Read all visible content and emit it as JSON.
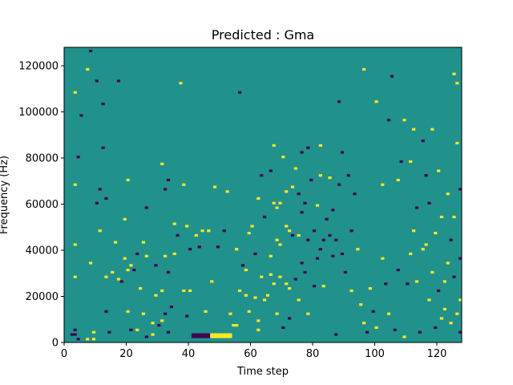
{
  "chart_data": {
    "type": "heatmap",
    "title": "Predicted : Gma",
    "xlabel": "Time step",
    "ylabel": "Frequency (Hz)",
    "xlim": [
      0,
      128
    ],
    "ylim": [
      0,
      128000
    ],
    "x_ticks": [
      0,
      20,
      40,
      60,
      80,
      100,
      120
    ],
    "y_ticks": [
      0,
      20000,
      40000,
      60000,
      80000,
      100000,
      120000
    ],
    "x_tick_labels": [
      "0",
      "20",
      "40",
      "60",
      "80",
      "100",
      "120"
    ],
    "y_tick_labels": [
      "0",
      "20000",
      "40000",
      "60000",
      "80000",
      "100000",
      "120000"
    ],
    "grid": false,
    "colormap": "viridis",
    "value_levels": [
      -1,
      0,
      1
    ],
    "colors": {
      "-1": "#440154",
      "0": "#21918c",
      "1": "#fde725"
    },
    "background_value": 0,
    "grid_shape": {
      "time_steps": 128,
      "frequency_bins": 128,
      "bin_hz": 1000
    },
    "note_cells": [
      [
        2,
        3,
        -1
      ],
      [
        3,
        3,
        -1
      ],
      [
        3,
        5,
        -1
      ],
      [
        4,
        1,
        -1
      ],
      [
        3,
        28,
        1
      ],
      [
        3,
        42,
        1
      ],
      [
        3,
        68,
        1
      ],
      [
        4,
        80,
        -1
      ],
      [
        5,
        98,
        -1
      ],
      [
        3,
        108,
        1
      ],
      [
        7,
        1,
        1
      ],
      [
        9,
        4,
        1
      ],
      [
        8,
        34,
        1
      ],
      [
        7,
        118,
        1
      ],
      [
        8,
        126,
        -1
      ],
      [
        9,
        1,
        1
      ],
      [
        10,
        60,
        -1
      ],
      [
        11,
        66,
        -1
      ],
      [
        10,
        113,
        -1
      ],
      [
        11,
        48,
        1
      ],
      [
        12,
        84,
        -1
      ],
      [
        13,
        13,
        -1
      ],
      [
        14,
        4,
        -1
      ],
      [
        13,
        28,
        1
      ],
      [
        12,
        103,
        -1
      ],
      [
        15,
        30,
        1
      ],
      [
        13,
        62,
        -1
      ],
      [
        16,
        43,
        1
      ],
      [
        17,
        27,
        1
      ],
      [
        17,
        113,
        -1
      ],
      [
        19,
        53,
        1
      ],
      [
        18,
        26,
        -1
      ],
      [
        19,
        36,
        1
      ],
      [
        20,
        70,
        1
      ],
      [
        20,
        31,
        1
      ],
      [
        20,
        13,
        1
      ],
      [
        21,
        5,
        -1
      ],
      [
        21,
        33,
        1
      ],
      [
        22,
        31,
        -1
      ],
      [
        23,
        5,
        1
      ],
      [
        23,
        38,
        -1
      ],
      [
        24,
        23,
        1
      ],
      [
        25,
        43,
        1
      ],
      [
        25,
        12,
        1
      ],
      [
        26,
        2,
        -1
      ],
      [
        26,
        37,
        1
      ],
      [
        26,
        58,
        -1
      ],
      [
        28,
        3,
        1
      ],
      [
        28,
        8,
        1
      ],
      [
        29,
        20,
        1
      ],
      [
        29,
        33,
        -1
      ],
      [
        30,
        7,
        -1
      ],
      [
        31,
        9,
        1
      ],
      [
        31,
        22,
        1
      ],
      [
        31,
        77,
        1
      ],
      [
        32,
        12,
        -1
      ],
      [
        32,
        37,
        1
      ],
      [
        32,
        66,
        -1
      ],
      [
        33,
        4,
        -1
      ],
      [
        33,
        30,
        -1
      ],
      [
        33,
        70,
        -1
      ],
      [
        34,
        15,
        -1
      ],
      [
        35,
        38,
        1
      ],
      [
        35,
        51,
        1
      ],
      [
        36,
        46,
        -1
      ],
      [
        37,
        112,
        1
      ],
      [
        38,
        22,
        1
      ],
      [
        38,
        68,
        1
      ],
      [
        39,
        11,
        -1
      ],
      [
        39,
        50,
        1
      ],
      [
        40,
        22,
        1
      ],
      [
        40,
        40,
        -1
      ],
      [
        41,
        2,
        -1
      ],
      [
        41,
        3,
        -1
      ],
      [
        42,
        2,
        -1
      ],
      [
        42,
        3,
        -1
      ],
      [
        42,
        46,
        1
      ],
      [
        43,
        2,
        -1
      ],
      [
        43,
        3,
        -1
      ],
      [
        43,
        41,
        -1
      ],
      [
        44,
        2,
        -1
      ],
      [
        44,
        3,
        -1
      ],
      [
        44,
        48,
        1
      ],
      [
        45,
        2,
        -1
      ],
      [
        45,
        3,
        -1
      ],
      [
        45,
        13,
        1
      ],
      [
        46,
        2,
        -1
      ],
      [
        46,
        3,
        -1
      ],
      [
        46,
        48,
        1
      ],
      [
        47,
        2,
        1
      ],
      [
        47,
        3,
        1
      ],
      [
        47,
        26,
        1
      ],
      [
        48,
        2,
        1
      ],
      [
        48,
        3,
        1
      ],
      [
        48,
        67,
        1
      ],
      [
        49,
        2,
        1
      ],
      [
        49,
        3,
        1
      ],
      [
        49,
        41,
        -1
      ],
      [
        50,
        2,
        1
      ],
      [
        50,
        3,
        1
      ],
      [
        51,
        2,
        1
      ],
      [
        51,
        3,
        1
      ],
      [
        51,
        48,
        -1
      ],
      [
        52,
        2,
        1
      ],
      [
        52,
        3,
        1
      ],
      [
        52,
        65,
        1
      ],
      [
        53,
        2,
        1
      ],
      [
        53,
        3,
        1
      ],
      [
        53,
        12,
        1
      ],
      [
        54,
        7,
        1
      ],
      [
        55,
        7,
        1
      ],
      [
        55,
        40,
        1
      ],
      [
        56,
        22,
        1
      ],
      [
        56,
        108,
        -1
      ],
      [
        57,
        33,
        -1
      ],
      [
        58,
        31,
        1
      ],
      [
        58,
        20,
        1
      ],
      [
        59,
        13,
        1
      ],
      [
        59,
        47,
        1
      ],
      [
        60,
        50,
        1
      ],
      [
        61,
        38,
        -1
      ],
      [
        61,
        19,
        1
      ],
      [
        62,
        5,
        1
      ],
      [
        62,
        9,
        1
      ],
      [
        62,
        62,
        1
      ],
      [
        63,
        28,
        1
      ],
      [
        63,
        72,
        -1
      ],
      [
        64,
        18,
        1
      ],
      [
        64,
        54,
        -1
      ],
      [
        65,
        20,
        1
      ],
      [
        66,
        74,
        -1
      ],
      [
        66,
        37,
        1
      ],
      [
        66,
        29,
        1
      ],
      [
        67,
        60,
        1
      ],
      [
        67,
        25,
        1
      ],
      [
        67,
        85,
        1
      ],
      [
        68,
        12,
        1
      ],
      [
        68,
        44,
        1
      ],
      [
        68,
        58,
        1
      ],
      [
        69,
        60,
        1
      ],
      [
        69,
        42,
        1
      ],
      [
        69,
        28,
        1
      ],
      [
        70,
        6,
        -1
      ],
      [
        70,
        80,
        1
      ],
      [
        71,
        25,
        1
      ],
      [
        71,
        50,
        1
      ],
      [
        71,
        65,
        1
      ],
      [
        72,
        10,
        -1
      ],
      [
        72,
        48,
        1
      ],
      [
        72,
        23,
        1
      ],
      [
        73,
        46,
        -1
      ],
      [
        73,
        67,
        1
      ],
      [
        74,
        27,
        -1
      ],
      [
        74,
        75,
        1
      ],
      [
        75,
        46,
        1
      ],
      [
        75,
        64,
        -1
      ],
      [
        75,
        18,
        1
      ],
      [
        76,
        56,
        -1
      ],
      [
        76,
        34,
        -1
      ],
      [
        76,
        82,
        -1
      ],
      [
        77,
        60,
        -1
      ],
      [
        77,
        30,
        -1
      ],
      [
        78,
        12,
        1
      ],
      [
        78,
        44,
        -1
      ],
      [
        78,
        84,
        -1
      ],
      [
        79,
        70,
        -1
      ],
      [
        80,
        48,
        -1
      ],
      [
        80,
        24,
        -1
      ],
      [
        81,
        59,
        1
      ],
      [
        81,
        36,
        -1
      ],
      [
        82,
        72,
        1
      ],
      [
        82,
        40,
        -1
      ],
      [
        82,
        85,
        1
      ],
      [
        83,
        24,
        1
      ],
      [
        83,
        44,
        -1
      ],
      [
        84,
        53,
        -1
      ],
      [
        85,
        46,
        -1
      ],
      [
        85,
        71,
        1
      ],
      [
        86,
        57,
        -1
      ],
      [
        86,
        37,
        -1
      ],
      [
        87,
        3,
        -1
      ],
      [
        87,
        44,
        -1
      ],
      [
        88,
        68,
        -1
      ],
      [
        88,
        104,
        -1
      ],
      [
        89,
        82,
        -1
      ],
      [
        89,
        38,
        -1
      ],
      [
        90,
        30,
        -1
      ],
      [
        91,
        72,
        -1
      ],
      [
        92,
        48,
        -1
      ],
      [
        92,
        22,
        1
      ],
      [
        93,
        64,
        -1
      ],
      [
        94,
        40,
        1
      ],
      [
        95,
        16,
        1
      ],
      [
        96,
        8,
        1
      ],
      [
        96,
        118,
        1
      ],
      [
        97,
        4,
        -1
      ],
      [
        98,
        23,
        1
      ],
      [
        99,
        13,
        -1
      ],
      [
        100,
        6,
        1
      ],
      [
        100,
        104,
        1
      ],
      [
        102,
        68,
        1
      ],
      [
        102,
        36,
        1
      ],
      [
        103,
        25,
        -1
      ],
      [
        104,
        12,
        1
      ],
      [
        104,
        96,
        -1
      ],
      [
        105,
        115,
        -1
      ],
      [
        106,
        5,
        -1
      ],
      [
        107,
        31,
        -1
      ],
      [
        107,
        70,
        1
      ],
      [
        108,
        78,
        -1
      ],
      [
        109,
        96,
        1
      ],
      [
        109,
        2,
        1
      ],
      [
        110,
        25,
        -1
      ],
      [
        111,
        78,
        1
      ],
      [
        111,
        38,
        1
      ],
      [
        112,
        92,
        1
      ],
      [
        112,
        48,
        1
      ],
      [
        113,
        58,
        -1
      ],
      [
        113,
        26,
        1
      ],
      [
        114,
        4,
        -1
      ],
      [
        115,
        40,
        1
      ],
      [
        115,
        87,
        -1
      ],
      [
        116,
        42,
        1
      ],
      [
        116,
        72,
        -1
      ],
      [
        117,
        18,
        1
      ],
      [
        117,
        60,
        -1
      ],
      [
        118,
        30,
        1
      ],
      [
        118,
        92,
        1
      ],
      [
        119,
        6,
        -1
      ],
      [
        119,
        47,
        1
      ],
      [
        120,
        74,
        1
      ],
      [
        120,
        22,
        -1
      ],
      [
        121,
        54,
        1
      ],
      [
        121,
        10,
        1
      ],
      [
        122,
        26,
        1
      ],
      [
        122,
        14,
        1
      ],
      [
        123,
        64,
        1
      ],
      [
        123,
        34,
        1
      ],
      [
        124,
        8,
        1
      ],
      [
        124,
        44,
        -1
      ],
      [
        125,
        28,
        -1
      ],
      [
        125,
        54,
        1
      ],
      [
        126,
        12,
        1
      ],
      [
        126,
        112,
        1
      ],
      [
        127,
        66,
        -1
      ],
      [
        127,
        36,
        -1
      ],
      [
        127,
        18,
        1
      ],
      [
        127,
        4,
        -1
      ],
      [
        126,
        86,
        1
      ],
      [
        125,
        116,
        1
      ]
    ]
  }
}
